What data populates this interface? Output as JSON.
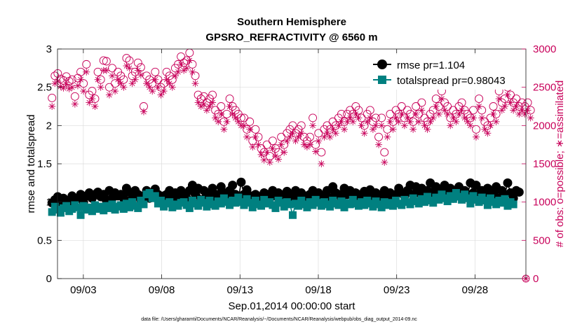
{
  "chart_data": {
    "type": "line",
    "title": "Southern Hemisphere",
    "subtitle": "GPSRO_REFRACTIVITY @ 6560 m",
    "xlabel": "Sep.01,2014 00:00:00 start",
    "ylabel": "rmse and totalspread",
    "ylabel_right": "# of obs: o=possible; ∗=assimilated",
    "footnote": "data file: /Users/gharamti/Documents/NCAR/Reanalysis/~/Documents/NCAR/Reanalysis/webpub/obs_diag_output_2014-09.nc",
    "x_tick_labels": [
      "09/03",
      "09/08",
      "09/13",
      "09/18",
      "09/23",
      "09/28"
    ],
    "x_tick_days": [
      3,
      8,
      13,
      18,
      23,
      28
    ],
    "xlim": [
      1.35,
      31.25
    ],
    "ylim": [
      0,
      3
    ],
    "ylim_right": [
      0,
      3000
    ],
    "y_ticks": [
      "0",
      "0.5",
      "1",
      "1.5",
      "2",
      "2.5",
      "3"
    ],
    "y_ticks_right": [
      "0",
      "500",
      "1000",
      "1500",
      "2000",
      "2500",
      "3000"
    ],
    "grid": true,
    "legend_position": "top-right",
    "colors": {
      "rmse": "#000000",
      "totalspread": "#008080",
      "obs": "#c8005a",
      "grid": "#dcdcdc"
    },
    "series": [
      {
        "name": "rmse",
        "legend": "rmse pr=1.104",
        "axis": "left",
        "values": [
          0.99,
          1.03,
          1.07,
          1.0,
          1.05,
          1.02,
          1.0,
          1.08,
          1.03,
          1.05,
          1.1,
          1.0,
          1.08,
          1.12,
          1.05,
          1.1,
          1.13,
          1.07,
          1.1,
          1.02,
          1.15,
          1.05,
          1.12,
          1.08,
          1.1,
          1.05,
          1.18,
          1.13,
          1.05,
          1.15,
          1.1,
          1.02,
          1.08,
          1.15,
          1.05,
          1.12,
          1.17,
          1.1,
          1.05,
          1.08,
          1.1,
          1.15,
          1.07,
          1.12,
          1.04,
          1.15,
          1.09,
          1.05,
          1.15,
          1.22,
          1.1,
          1.18,
          1.03,
          1.15,
          1.06,
          1.12,
          1.18,
          1.05,
          1.1,
          1.2,
          1.12,
          1.08,
          1.15,
          1.22,
          1.1,
          1.03,
          1.26,
          1.1,
          1.16,
          1.05,
          1.08,
          1.1,
          1.07,
          1.03,
          1.12,
          1.1,
          1.05,
          1.15,
          1.08,
          1.12,
          1.02,
          1.1,
          1.14,
          1.08,
          1.0,
          1.15,
          1.06,
          1.12,
          1.05,
          1.08,
          1.1,
          1.15,
          1.07,
          1.12,
          1.0,
          1.08,
          1.15,
          1.05,
          1.2,
          1.12,
          1.1,
          1.04,
          1.18,
          1.1,
          1.15,
          1.08,
          1.12,
          1.05,
          1.1,
          1.14,
          1.05,
          1.16,
          1.08,
          1.12,
          1.02,
          1.1,
          1.15,
          1.08,
          1.12,
          1.05,
          1.1,
          1.18,
          1.12,
          1.08,
          1.15,
          1.22,
          1.1,
          1.2,
          1.12,
          1.18,
          1.05,
          1.15,
          1.25,
          1.12,
          1.2,
          1.08,
          1.15,
          1.22,
          1.1,
          1.18,
          1.05,
          1.12,
          1.2,
          1.08,
          1.15,
          1.1,
          1.25,
          1.12,
          1.22,
          1.08,
          1.15,
          1.1,
          1.18,
          1.07,
          1.12,
          1.2,
          1.05,
          1.15,
          1.1,
          1.25,
          1.12,
          1.05,
          1.15,
          1.13
        ]
      },
      {
        "name": "totalspread",
        "legend": "totalspread pr=0.98043",
        "axis": "left",
        "values": [
          0.87,
          0.94,
          0.9,
          0.86,
          0.92,
          0.95,
          0.88,
          0.91,
          0.96,
          0.93,
          0.83,
          0.95,
          0.9,
          0.93,
          0.88,
          0.96,
          0.91,
          0.94,
          0.89,
          0.95,
          0.92,
          0.97,
          0.9,
          0.94,
          0.96,
          0.91,
          0.98,
          0.93,
          1.0,
          0.95,
          0.92,
          1.02,
          0.97,
          1.1,
          1.12,
          1.05,
          1.08,
          0.98,
          1.02,
          0.94,
          0.98,
          1.0,
          0.93,
          0.97,
          0.95,
          0.99,
          1.0,
          0.96,
          0.92,
          1.02,
          0.98,
          0.95,
          1.03,
          0.99,
          0.94,
          1.02,
          0.97,
          0.95,
          1.01,
          0.98,
          1.05,
          1.0,
          0.96,
          1.02,
          0.99,
          1.06,
          1.0,
          0.96,
          1.04,
          0.99,
          0.93,
          1.02,
          0.97,
          0.95,
          1.03,
          0.98,
          1.0,
          0.96,
          0.92,
          1.02,
          0.99,
          0.94,
          1.0,
          0.97,
          0.83,
          0.98,
          0.95,
          1.02,
          0.97,
          0.93,
          1.0,
          0.96,
          1.03,
          0.99,
          0.95,
          1.0,
          0.97,
          0.94,
          1.02,
          0.98,
          0.96,
          1.01,
          0.93,
          0.99,
          0.97,
          1.03,
          0.98,
          0.95,
          1.0,
          0.96,
          1.02,
          0.98,
          0.94,
          1.01,
          0.97,
          0.93,
          1.0,
          0.96,
          0.99,
          0.95,
          1.02,
          0.98,
          0.96,
          1.03,
          1.0,
          0.97,
          1.05,
          1.01,
          0.98,
          1.04,
          1.0,
          1.07,
          1.02,
          0.99,
          1.06,
          1.03,
          1.1,
          1.05,
          1.01,
          1.08,
          1.04,
          1.12,
          1.07,
          1.03,
          1.1,
          1.05,
          0.98,
          1.08,
          1.03,
          1.0,
          1.06,
          1.02,
          0.96,
          1.05,
          1.0,
          0.97,
          1.02,
          0.99,
          1.04,
          0.95,
          1.0,
          0.97
        ]
      },
      {
        "name": "possible",
        "marker": "circle",
        "axis": "right",
        "values": [
          2360,
          2650,
          2680,
          2610,
          2590,
          2640,
          2580,
          2600,
          2380,
          2620,
          2700,
          2550,
          2800,
          2400,
          2450,
          2350,
          2700,
          2600,
          2850,
          2840,
          2500,
          2750,
          2550,
          2700,
          2650,
          2600,
          2880,
          2850,
          2650,
          2700,
          2820,
          2760,
          2250,
          2650,
          2600,
          2550,
          2700,
          2600,
          2500,
          2550,
          2700,
          2650,
          2600,
          2750,
          2800,
          2900,
          2820,
          2850,
          2950,
          2800,
          2650,
          2400,
          2350,
          2380,
          2300,
          2350,
          2400,
          2200,
          2150,
          2250,
          2050,
          2150,
          2350,
          2250,
          2200,
          2150,
          2100,
          2100,
          1950,
          2050,
          1800,
          1950,
          1850,
          1700,
          1650,
          1750,
          1600,
          1800,
          1700,
          1650,
          1850,
          1750,
          1900,
          1950,
          2000,
          1900,
          1950,
          2000,
          1850,
          1800,
          1850,
          2100,
          1750,
          1900,
          1650,
          1950,
          2000,
          1950,
          2050,
          2000,
          2100,
          2150,
          2050,
          2150,
          2200,
          2150,
          2250,
          2200,
          2100,
          2000,
          2150,
          2200,
          2050,
          2100,
          1850,
          2100,
          1650,
          1950,
          2150,
          2050,
          2200,
          2150,
          2250,
          2100,
          2200,
          2150,
          2050,
          2250,
          2150,
          2300,
          2100,
          2050,
          2150,
          2200,
          2350,
          2250,
          2450,
          2300,
          2250,
          2100,
          2200,
          2150,
          2250,
          2300,
          2200,
          2150,
          2100,
          2200,
          1950,
          2350,
          2200,
          2050,
          2000,
          2100,
          2250,
          2150,
          2450,
          2300,
          2350,
          2500,
          2400,
          2300,
          2350,
          2250,
          2300,
          2250,
          2300,
          2200
        ]
      },
      {
        "name": "assimilated",
        "marker": "asterisk",
        "axis": "right",
        "values": [
          2250,
          2550,
          2580,
          2510,
          2490,
          2540,
          2480,
          2500,
          2280,
          2520,
          2600,
          2450,
          2700,
          2300,
          2350,
          2250,
          2600,
          2500,
          2720,
          2720,
          2400,
          2650,
          2450,
          2600,
          2550,
          2500,
          2780,
          2750,
          2550,
          2600,
          2720,
          2660,
          2180,
          2550,
          2500,
          2450,
          2600,
          2500,
          2400,
          2450,
          2600,
          2550,
          2500,
          2650,
          2700,
          2800,
          2720,
          2750,
          2850,
          2700,
          2550,
          2300,
          2250,
          2280,
          2200,
          2250,
          2300,
          2100,
          2050,
          2150,
          1950,
          2050,
          2250,
          2150,
          2100,
          2050,
          2000,
          2000,
          1850,
          1950,
          1720,
          1850,
          1750,
          1620,
          1550,
          1650,
          1520,
          1700,
          1600,
          1560,
          1750,
          1650,
          1800,
          1850,
          1900,
          1800,
          1850,
          1900,
          1750,
          1720,
          1750,
          2000,
          1660,
          1800,
          1500,
          1850,
          1900,
          1850,
          1950,
          1900,
          2000,
          2050,
          1950,
          2050,
          2100,
          2050,
          2150,
          2100,
          2000,
          1900,
          2050,
          2100,
          1950,
          2000,
          1750,
          2000,
          1520,
          1850,
          2050,
          1950,
          2100,
          2050,
          2150,
          2000,
          2100,
          2050,
          1950,
          2150,
          2050,
          2200,
          2000,
          1950,
          2050,
          2100,
          2250,
          2150,
          2350,
          2200,
          2150,
          2000,
          2100,
          2050,
          2150,
          2200,
          2100,
          2050,
          2000,
          2100,
          1850,
          2250,
          2100,
          1950,
          1900,
          2000,
          2150,
          2050,
          2350,
          2200,
          2250,
          2400,
          2300,
          2200,
          2250,
          2150,
          2200,
          2150,
          2200,
          2100
        ]
      }
    ]
  }
}
